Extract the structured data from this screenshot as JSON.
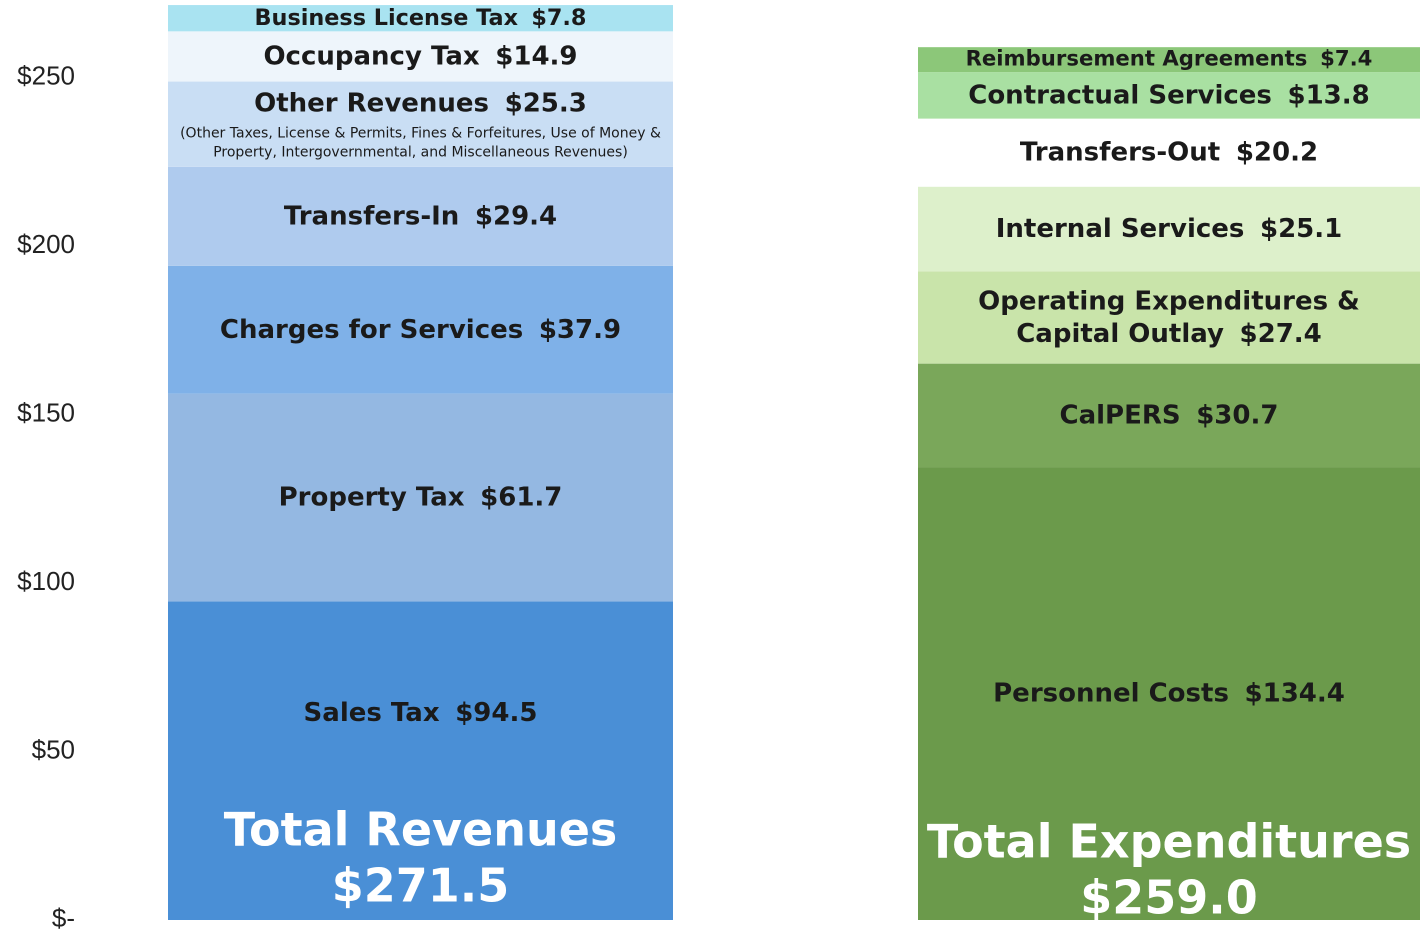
{
  "chart_data": {
    "type": "stacked_bar",
    "ylim": [
      0,
      273
    ],
    "yticks": [
      {
        "value": 0,
        "label": "$-"
      },
      {
        "value": 50,
        "label": "$50"
      },
      {
        "value": 100,
        "label": "$100"
      },
      {
        "value": 150,
        "label": "$150"
      },
      {
        "value": 200,
        "label": "$200"
      },
      {
        "value": 250,
        "label": "$250"
      }
    ],
    "bars": [
      {
        "total": {
          "label": "Total Revenues",
          "value": 271.5,
          "value_label": "$271.5"
        },
        "segments": [
          {
            "name": "Sales Tax",
            "value": 94.5,
            "value_label": "$94.5",
            "color": "#4a8fd6"
          },
          {
            "name": "Property Tax",
            "value": 61.7,
            "value_label": "$61.7",
            "color": "#94b8e2"
          },
          {
            "name": "Charges for Services",
            "value": 37.9,
            "value_label": "$37.9",
            "color": "#7fb1e8"
          },
          {
            "name": "Transfers-In",
            "value": 29.4,
            "value_label": "$29.4",
            "color": "#afcbee"
          },
          {
            "name": "Other Revenues",
            "value": 25.3,
            "value_label": "$25.3",
            "color": "#c9def4",
            "note": [
              "(Other Taxes, License & Permits, Fines & Forfeitures, Use of Money &",
              "Property, Intergovernmental, and Miscellaneous Revenues)"
            ]
          },
          {
            "name": "Occupancy Tax",
            "value": 14.9,
            "value_label": "$14.9",
            "color": "#eef5fb"
          },
          {
            "name": "Business License Tax",
            "value": 7.8,
            "value_label": "$7.8",
            "color": "#a9e3f1"
          }
        ]
      },
      {
        "total": {
          "label": "Total Expenditures",
          "value": 259.0,
          "value_label": "$259.0"
        },
        "segments": [
          {
            "name": "Personnel Costs",
            "value": 134.4,
            "value_label": "$134.4",
            "color": "#6b9a4b"
          },
          {
            "name": "CalPERS",
            "value": 30.7,
            "value_label": "$30.7",
            "color": "#7aa75a"
          },
          {
            "name": [
              "Operating Expenditures &",
              "Capital Outlay"
            ],
            "value": 27.4,
            "value_label": "$27.4",
            "color": "#c9e4aa"
          },
          {
            "name": "Internal Services",
            "value": 25.1,
            "value_label": "$25.1",
            "color": "#ddf0cb"
          },
          {
            "name": "Transfers-Out",
            "value": 20.2,
            "value_label": "$20.2",
            "color": "#ffffff"
          },
          {
            "name": "Contractual Services",
            "value": 13.8,
            "value_label": "$13.8",
            "color": "#a9e0a2"
          },
          {
            "name": "Reimbursement Agreements",
            "value": 7.4,
            "value_label": "$7.4",
            "color": "#8cc779"
          }
        ]
      }
    ]
  }
}
